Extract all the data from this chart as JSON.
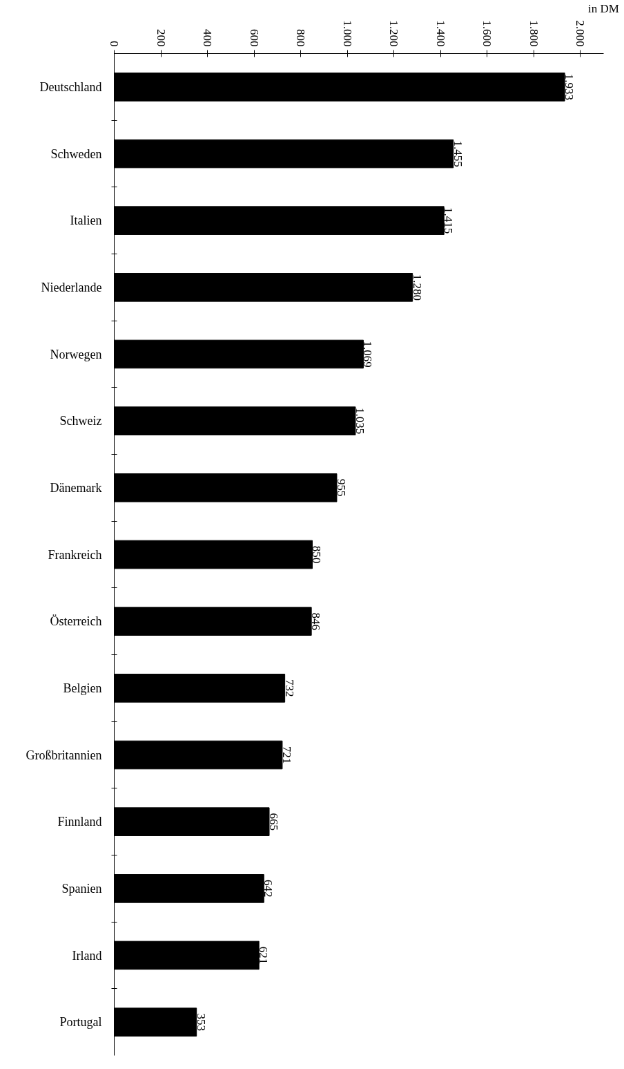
{
  "chart_data": {
    "type": "bar",
    "orientation": "horizontal",
    "xlabel": "in DM",
    "categories": [
      "Deutschland",
      "Schweden",
      "Italien",
      "Niederlande",
      "Norwegen",
      "Schweiz",
      "Dänemark",
      "Frankreich",
      "Österreich",
      "Belgien",
      "Großbritannien",
      "Finnland",
      "Spanien",
      "Irland",
      "Portugal"
    ],
    "values": [
      1933,
      1455,
      1415,
      1280,
      1069,
      1035,
      955,
      850,
      846,
      732,
      721,
      665,
      642,
      621,
      353
    ],
    "value_labels": [
      "1.933",
      "1.455",
      "1.415",
      "1.280",
      "1.069",
      "1.035",
      "955",
      "850",
      "846",
      "732",
      "721",
      "665",
      "642",
      "621",
      "353"
    ],
    "color": "#000000",
    "xlim": [
      0,
      2100
    ],
    "xticks": [
      0,
      200,
      400,
      600,
      800,
      {
        "value": 1000,
        "label": "1.000"
      },
      {
        "value": 1200,
        "label": "1.200"
      },
      {
        "value": 1400,
        "label": "1.400"
      },
      {
        "value": 1600,
        "label": "1.600"
      },
      {
        "value": 1800,
        "label": "1.800"
      },
      {
        "value": 2000,
        "label": "2.000"
      }
    ],
    "grid": false
  }
}
